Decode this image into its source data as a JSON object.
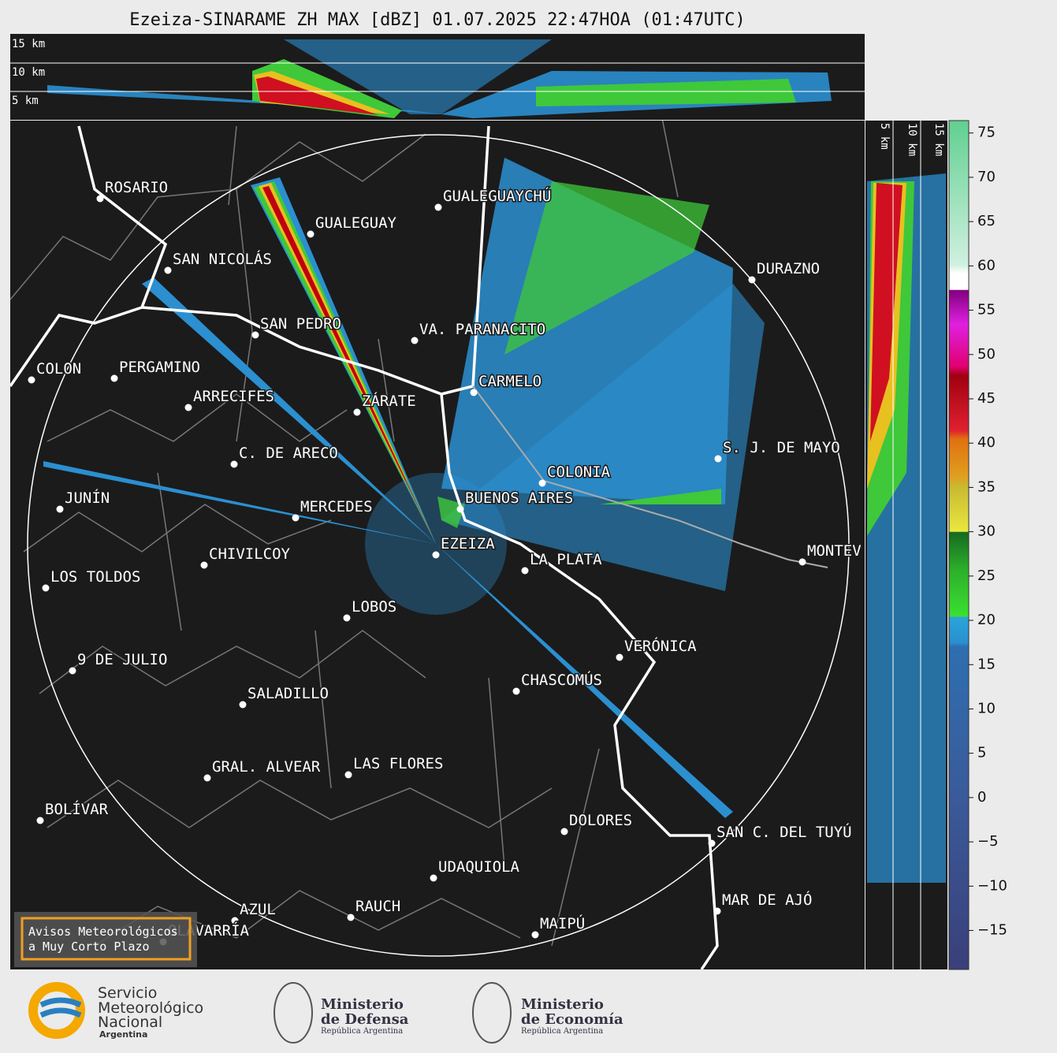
{
  "title": "Ezeiza-SINARAME ZH MAX [dBZ] 01.07.2025 22:47HOA (01:47UTC)",
  "top_panel": {
    "labels": [
      "15 km",
      "10 km",
      "5 km"
    ]
  },
  "side_panel": {
    "labels": [
      "5 km",
      "10 km",
      "15 km"
    ]
  },
  "cities": [
    "ROSARIO",
    "GUALEGUAY",
    "GUALEGUAYCHÚ",
    "SAN NICOLÁS",
    "DURAZNO",
    "SAN PEDRO",
    "VA. PARANACITO",
    "COLON",
    "PERGAMINO",
    "CARMELO",
    "ARRECIFES",
    "ZÁRATE",
    "S. J. DE MAYO",
    "C. DE ARECO",
    "COLONIA",
    "JUNÍN",
    "BUENOS AIRES",
    "MERCEDES",
    "EZEIZA",
    "CHIVILCOY",
    "MONTEV",
    "LA PLATA",
    "LOS TOLDOS",
    "LOBOS",
    "VERÓNICA",
    "9 DE JULIO",
    "CHASCOMÚS",
    "SALADILLO",
    "GRAL. ALVEAR",
    "LAS FLORES",
    "BOLÍVAR",
    "DOLORES",
    "SAN C. DEL TUYÚ",
    "UDAQUIOLA",
    "MAR DE AJÓ",
    "AZUL",
    "RAUCH",
    "OLAVARRÍA",
    "MAIPÚ"
  ],
  "colorbar": {
    "ylim": [
      -19.4,
      76.4
    ],
    "ticks": [
      75,
      70,
      65,
      60,
      55,
      50,
      45,
      40,
      35,
      30,
      25,
      20,
      15,
      10,
      5,
      0,
      {
        "value": -5,
        "label": "−5"
      },
      {
        "value": -10,
        "label": "−10"
      },
      {
        "value": -15,
        "label": "−15"
      }
    ]
  },
  "notice": [
    "Avisos Meteorológicos",
    "a Muy Corto Plazo"
  ],
  "logos": {
    "smn": [
      "Servicio",
      "Meteorológico",
      "Nacional",
      "Argentina"
    ],
    "defensa": [
      "Ministerio",
      "de Defensa",
      "República Argentina"
    ],
    "economia": [
      "Ministerio",
      "de Economía",
      "República Argentina"
    ]
  }
}
